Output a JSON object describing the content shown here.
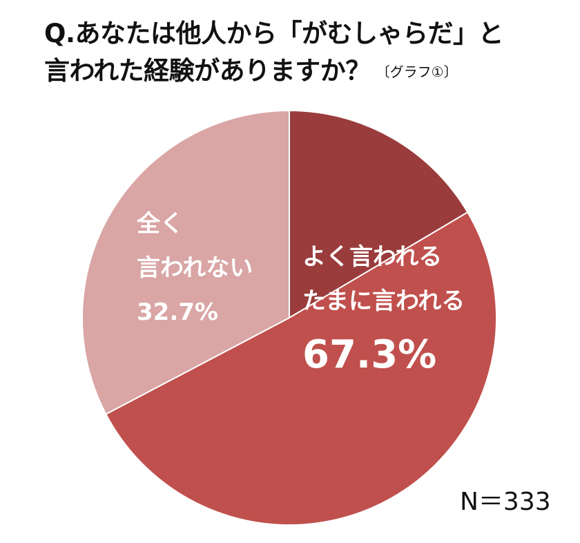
{
  "title": {
    "line1": "Q.あなたは他人から「がむしゃらだ」と",
    "line2": "言われた経験がありますか？",
    "tag": "〔グラフ①〕"
  },
  "chart_data": {
    "type": "pie",
    "title": "Q.あなたは他人から「がむしゃらだ」と言われた経験がありますか？",
    "slices": [
      {
        "name": "よく言われる",
        "value": 16.5,
        "color": "#9a3c3c"
      },
      {
        "name": "たまに言われる",
        "value": 50.8,
        "color": "#c0504d"
      },
      {
        "name": "全く言われない",
        "value": 32.7,
        "color": "#d9a5a5"
      }
    ],
    "combined_label": {
      "line1": "よく言われる",
      "line2": "たまに言われる",
      "percent": "67.3%"
    },
    "never_label": {
      "line1": "全く",
      "line2": "言われない",
      "percent": "32.7%"
    },
    "n": "N＝333"
  }
}
